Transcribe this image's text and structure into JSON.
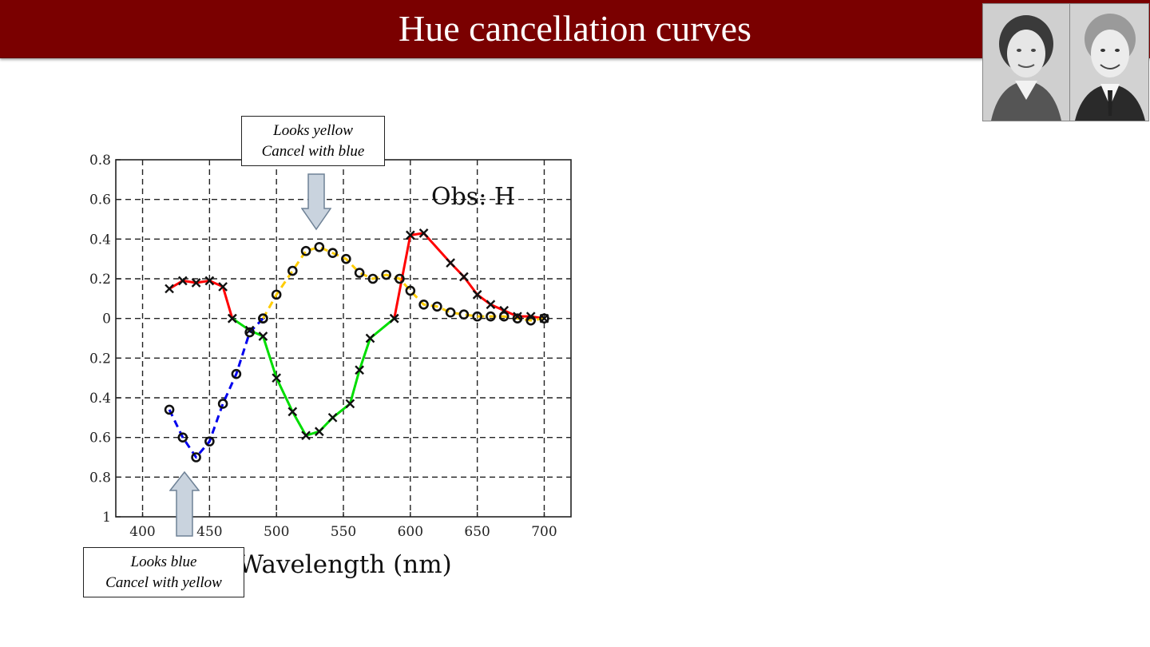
{
  "slide": {
    "title": "Hue cancellation curves"
  },
  "portraits": [
    {
      "icon": "woman-portrait-photo"
    },
    {
      "icon": "man-portrait-photo"
    }
  ],
  "callouts": {
    "yellow": {
      "line1": "Looks yellow",
      "line2": "Cancel with blue"
    },
    "blue": {
      "line1": "Looks blue",
      "line2": "Cancel with yellow"
    }
  },
  "chart_data": {
    "type": "line",
    "annotation": "Obs: H",
    "xlabel": "Wavelength (nm)",
    "ylabel": "",
    "xlim": [
      380,
      720
    ],
    "ylim": [
      -1,
      0.8
    ],
    "xticks": [
      400,
      450,
      500,
      550,
      600,
      650,
      700
    ],
    "yticks": [
      {
        "value": 0.8,
        "label": "0.8"
      },
      {
        "value": 0.6,
        "label": "0.6"
      },
      {
        "value": 0.4,
        "label": "0.4"
      },
      {
        "value": 0.2,
        "label": "0.2"
      },
      {
        "value": 0,
        "label": "0"
      },
      {
        "value": -0.2,
        "label": "0.2"
      },
      {
        "value": -0.4,
        "label": "0.4"
      },
      {
        "value": -0.6,
        "label": "0.6"
      },
      {
        "value": -0.8,
        "label": "0.8"
      },
      {
        "value": -1,
        "label": "1"
      }
    ],
    "grid": true,
    "series": [
      {
        "color": "#ff0000",
        "dashed": false,
        "marker": "x",
        "points": [
          [
            420,
            0.15
          ],
          [
            430,
            0.19
          ],
          [
            440,
            0.18
          ],
          [
            450,
            0.19
          ],
          [
            460,
            0.16
          ],
          [
            467,
            0.0
          ]
        ]
      },
      {
        "color": "#00dd00",
        "dashed": false,
        "marker": "x",
        "points": [
          [
            467,
            0.0
          ],
          [
            480,
            -0.06
          ],
          [
            490,
            -0.09
          ],
          [
            500,
            -0.3
          ],
          [
            512,
            -0.47
          ],
          [
            522,
            -0.59
          ],
          [
            532,
            -0.57
          ],
          [
            542,
            -0.5
          ],
          [
            555,
            -0.43
          ],
          [
            562,
            -0.26
          ],
          [
            570,
            -0.1
          ],
          [
            588,
            0.0
          ]
        ]
      },
      {
        "color": "#ff0000",
        "dashed": false,
        "marker": "x",
        "points": [
          [
            588,
            0.0
          ],
          [
            600,
            0.42
          ],
          [
            610,
            0.43
          ],
          [
            630,
            0.28
          ],
          [
            640,
            0.21
          ],
          [
            650,
            0.12
          ],
          [
            660,
            0.07
          ],
          [
            670,
            0.04
          ],
          [
            680,
            0.01
          ],
          [
            690,
            0.01
          ],
          [
            700,
            0.0
          ]
        ]
      },
      {
        "color": "#0000ee",
        "dashed": true,
        "marker": "o",
        "points": [
          [
            420,
            -0.46
          ],
          [
            430,
            -0.6
          ],
          [
            440,
            -0.7
          ],
          [
            450,
            -0.62
          ],
          [
            460,
            -0.43
          ],
          [
            470,
            -0.28
          ],
          [
            480,
            -0.07
          ],
          [
            490,
            0.0
          ]
        ]
      },
      {
        "color": "#ffcc00",
        "dashed": true,
        "marker": "o",
        "points": [
          [
            490,
            0.0
          ],
          [
            500,
            0.12
          ],
          [
            512,
            0.24
          ],
          [
            522,
            0.34
          ],
          [
            532,
            0.36
          ],
          [
            542,
            0.33
          ],
          [
            552,
            0.3
          ],
          [
            562,
            0.23
          ],
          [
            572,
            0.2
          ],
          [
            582,
            0.22
          ],
          [
            592,
            0.2
          ],
          [
            600,
            0.14
          ],
          [
            610,
            0.07
          ],
          [
            620,
            0.06
          ],
          [
            630,
            0.03
          ],
          [
            640,
            0.02
          ],
          [
            650,
            0.01
          ],
          [
            660,
            0.01
          ],
          [
            670,
            0.01
          ],
          [
            680,
            0.0
          ],
          [
            690,
            -0.01
          ],
          [
            700,
            0.0
          ]
        ]
      }
    ]
  }
}
